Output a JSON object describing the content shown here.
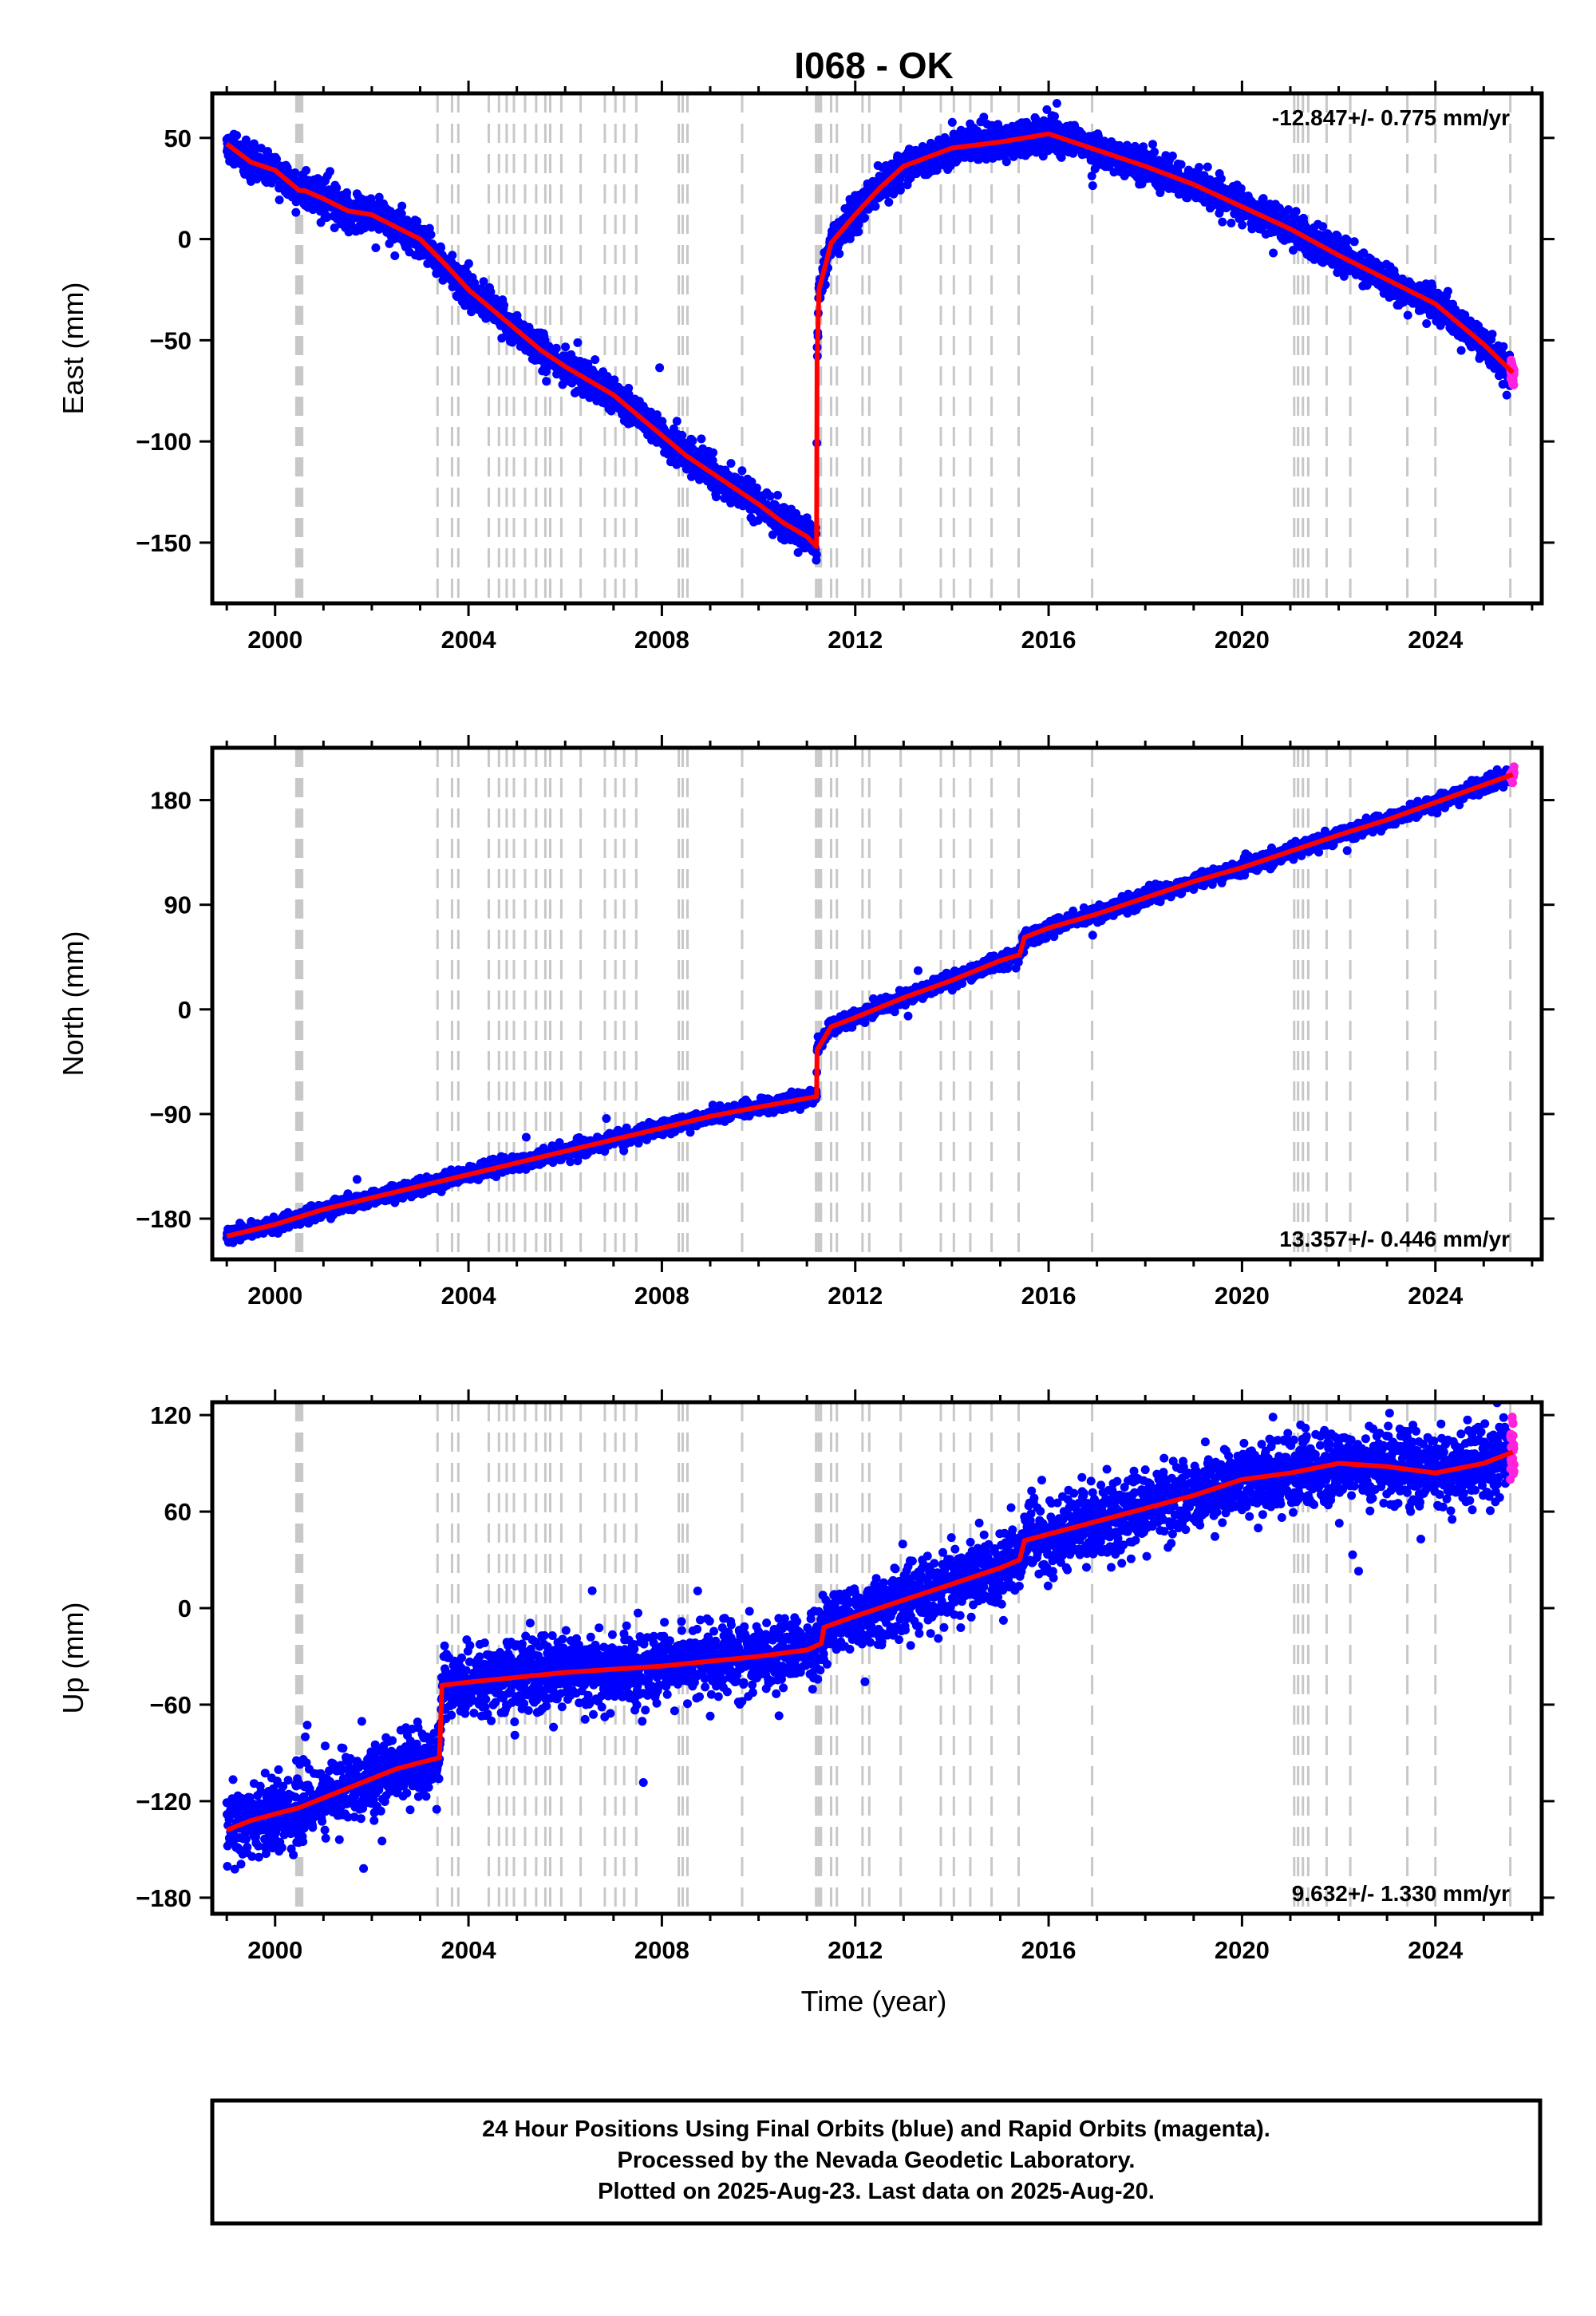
{
  "title": "I068 - OK",
  "colors": {
    "final": "#0000ff",
    "rapid": "#ff22dd",
    "model": "#ff0000",
    "events": "#c8c8c8",
    "frame": "#000000"
  },
  "xlabel": "Time (year)",
  "x_tick_labels": [
    "2000",
    "2004",
    "2008",
    "2012",
    "2016",
    "2020",
    "2024"
  ],
  "footer": {
    "line1": "24 Hour Positions Using Final Orbits (blue) and Rapid Orbits (magenta).",
    "line2": "Processed by the Nevada Geodetic Laboratory.",
    "line3": "Plotted on 2025-Aug-23. Last data on 2025-Aug-20."
  },
  "chart_data": [
    {
      "type": "scatter",
      "ylabel": "East (mm)",
      "rate_text": "-12.847+/- 0.775 mm/yr",
      "rate_position": "top-right",
      "xlim": [
        1998.7,
        2026.2
      ],
      "ylim": [
        -180,
        72
      ],
      "yticks": [
        50,
        0,
        -50,
        -100,
        -150
      ],
      "ytick_labels": [
        "50",
        "0",
        "−50",
        "−100",
        "−150"
      ],
      "grid": false,
      "data_span": [
        1999.0,
        2025.63
      ],
      "rapid_span": [
        2025.55,
        2025.63
      ],
      "model_path": [
        [
          1999.0,
          47
        ],
        [
          1999.5,
          38
        ],
        [
          2000.0,
          34
        ],
        [
          2000.5,
          24
        ],
        [
          2000.6,
          24
        ],
        [
          2001.0,
          20
        ],
        [
          2001.5,
          14
        ],
        [
          2002.0,
          12
        ],
        [
          2002.5,
          6
        ],
        [
          2003.0,
          0
        ],
        [
          2003.5,
          -12
        ],
        [
          2004.0,
          -25
        ],
        [
          2004.5,
          -35
        ],
        [
          2005.0,
          -45
        ],
        [
          2005.5,
          -55
        ],
        [
          2006.0,
          -63
        ],
        [
          2006.5,
          -70
        ],
        [
          2007.0,
          -77
        ],
        [
          2007.5,
          -87
        ],
        [
          2008.0,
          -97
        ],
        [
          2008.5,
          -107
        ],
        [
          2009.0,
          -115
        ],
        [
          2009.5,
          -123
        ],
        [
          2010.0,
          -131
        ],
        [
          2010.5,
          -140
        ],
        [
          2011.0,
          -147
        ],
        [
          2011.2,
          -152
        ],
        [
          2011.21,
          -60
        ],
        [
          2011.25,
          -25
        ],
        [
          2011.5,
          -2
        ],
        [
          2012.0,
          12
        ],
        [
          2012.5,
          25
        ],
        [
          2013.0,
          36
        ],
        [
          2014.0,
          45
        ],
        [
          2015.0,
          48
        ],
        [
          2016.0,
          52
        ],
        [
          2017.0,
          44
        ],
        [
          2018.0,
          36
        ],
        [
          2019.0,
          27
        ],
        [
          2020.0,
          16
        ],
        [
          2021.0,
          5
        ],
        [
          2022.0,
          -8
        ],
        [
          2023.0,
          -20
        ],
        [
          2024.0,
          -32
        ],
        [
          2025.0,
          -52
        ],
        [
          2025.6,
          -66
        ]
      ],
      "scatter_sigma": 4
    },
    {
      "type": "scatter",
      "ylabel": "North (mm)",
      "rate_text": "13.357+/- 0.446 mm/yr",
      "rate_position": "bottom-right",
      "xlim": [
        1998.7,
        2026.2
      ],
      "ylim": [
        -215,
        225
      ],
      "yticks": [
        180,
        90,
        0,
        -90,
        -180
      ],
      "ytick_labels": [
        "180",
        "90",
        "0",
        "−90",
        "−180"
      ],
      "grid": false,
      "data_span": [
        1999.0,
        2025.63
      ],
      "rapid_span": [
        2025.55,
        2025.63
      ],
      "model_path": [
        [
          1999.0,
          -195
        ],
        [
          2000.0,
          -185
        ],
        [
          2001.0,
          -172
        ],
        [
          2002.0,
          -162
        ],
        [
          2003.0,
          -152
        ],
        [
          2004.0,
          -142
        ],
        [
          2005.0,
          -132
        ],
        [
          2006.0,
          -122
        ],
        [
          2007.0,
          -112
        ],
        [
          2008.0,
          -102
        ],
        [
          2009.0,
          -92
        ],
        [
          2010.0,
          -84
        ],
        [
          2011.2,
          -75
        ],
        [
          2011.21,
          -35
        ],
        [
          2011.5,
          -15
        ],
        [
          2012.0,
          -7
        ],
        [
          2013.0,
          10
        ],
        [
          2014.0,
          25
        ],
        [
          2015.0,
          42
        ],
        [
          2015.4,
          47
        ],
        [
          2015.5,
          62
        ],
        [
          2016.0,
          70
        ],
        [
          2017.0,
          82
        ],
        [
          2018.0,
          96
        ],
        [
          2019.0,
          110
        ],
        [
          2020.0,
          122
        ],
        [
          2021.0,
          136
        ],
        [
          2022.0,
          150
        ],
        [
          2023.0,
          163
        ],
        [
          2024.0,
          178
        ],
        [
          2025.0,
          193
        ],
        [
          2025.6,
          202
        ]
      ],
      "scatter_sigma": 3
    },
    {
      "type": "scatter",
      "ylabel": "Up (mm)",
      "rate_text": "9.632+/- 1.330 mm/yr",
      "rate_position": "bottom-right",
      "xlim": [
        1998.7,
        2026.2
      ],
      "ylim": [
        -190,
        128
      ],
      "yticks": [
        120,
        60,
        0,
        -60,
        -120,
        -180
      ],
      "ytick_labels": [
        "120",
        "60",
        "0",
        "−60",
        "−120",
        "−180"
      ],
      "grid": false,
      "data_span": [
        1999.0,
        2025.63
      ],
      "rapid_span": [
        2025.55,
        2025.63
      ],
      "model_path": [
        [
          1999.0,
          -138
        ],
        [
          1999.5,
          -132
        ],
        [
          2000.0,
          -128
        ],
        [
          2000.5,
          -124
        ],
        [
          2001.0,
          -118
        ],
        [
          2001.5,
          -112
        ],
        [
          2002.0,
          -106
        ],
        [
          2002.5,
          -100
        ],
        [
          2003.0,
          -96
        ],
        [
          2003.4,
          -93
        ],
        [
          2003.45,
          -48
        ],
        [
          2004.0,
          -46
        ],
        [
          2005.0,
          -43
        ],
        [
          2006.0,
          -40
        ],
        [
          2007.0,
          -38
        ],
        [
          2008.0,
          -36
        ],
        [
          2009.0,
          -33
        ],
        [
          2010.0,
          -30
        ],
        [
          2011.0,
          -26
        ],
        [
          2011.3,
          -22
        ],
        [
          2011.35,
          -12
        ],
        [
          2012.0,
          -5
        ],
        [
          2013.0,
          5
        ],
        [
          2014.0,
          15
        ],
        [
          2015.0,
          25
        ],
        [
          2015.4,
          30
        ],
        [
          2015.5,
          42
        ],
        [
          2016.0,
          46
        ],
        [
          2017.0,
          54
        ],
        [
          2018.0,
          62
        ],
        [
          2019.0,
          70
        ],
        [
          2020.0,
          80
        ],
        [
          2021.0,
          84
        ],
        [
          2022.0,
          90
        ],
        [
          2023.0,
          88
        ],
        [
          2024.0,
          84
        ],
        [
          2025.0,
          90
        ],
        [
          2025.6,
          97
        ]
      ],
      "scatter_sigma": 11
    }
  ],
  "event_lines": [
    2000.44,
    2000.48,
    2000.52,
    2000.56,
    2003.36,
    2003.66,
    2003.79,
    2004.42,
    2004.63,
    2004.79,
    2004.94,
    2005.17,
    2005.4,
    2005.59,
    2005.69,
    2005.92,
    2006.32,
    2006.82,
    2007.04,
    2007.22,
    2007.47,
    2008.35,
    2008.43,
    2008.53,
    2009.66,
    2011.19,
    2011.24,
    2011.29,
    2011.5,
    2011.62,
    2012.15,
    2012.29,
    2012.94,
    2013.77,
    2014.04,
    2014.38,
    2014.82,
    2015.38,
    2016.9,
    2021.08,
    2021.16,
    2021.26,
    2021.37,
    2021.75,
    2022.24,
    2023.42,
    2024.0,
    2025.55
  ]
}
